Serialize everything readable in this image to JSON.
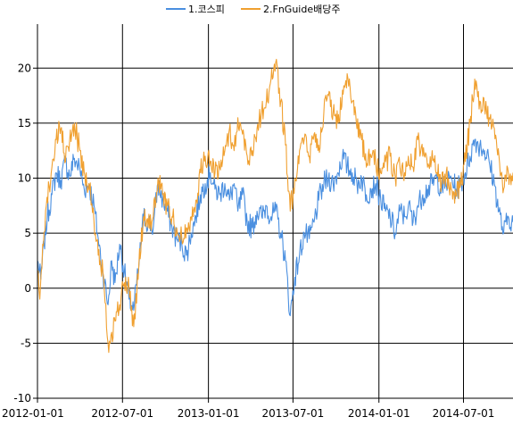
{
  "chart_data": {
    "type": "line",
    "grid": true,
    "legend_position": "top-center",
    "ylim": [
      -10,
      24
    ],
    "yticks": [
      -10,
      -5,
      0,
      5,
      10,
      15,
      20
    ],
    "xlim": [
      "2012-01-01",
      "2014-10-15"
    ],
    "xticks": [
      "2012-01-01",
      "2012-07-01",
      "2013-01-01",
      "2013-07-01",
      "2014-01-01",
      "2014-07-01"
    ],
    "series": [
      {
        "name": "1.코스피",
        "color": "#4a8fe0",
        "points": [
          [
            "2012-01-01",
            2.5
          ],
          [
            "2012-01-08",
            0.8
          ],
          [
            "2012-01-15",
            4.0
          ],
          [
            "2012-01-22",
            6.5
          ],
          [
            "2012-02-01",
            8.5
          ],
          [
            "2012-02-10",
            10.5
          ],
          [
            "2012-02-20",
            9.8
          ],
          [
            "2012-03-01",
            11.5
          ],
          [
            "2012-03-10",
            10.2
          ],
          [
            "2012-03-20",
            11.8
          ],
          [
            "2012-04-01",
            10.8
          ],
          [
            "2012-04-10",
            9.0
          ],
          [
            "2012-04-20",
            9.5
          ],
          [
            "2012-05-01",
            7.5
          ],
          [
            "2012-05-10",
            4.5
          ],
          [
            "2012-05-20",
            1.5
          ],
          [
            "2012-05-31",
            -1.5
          ],
          [
            "2012-06-08",
            2.5
          ],
          [
            "2012-06-15",
            0.5
          ],
          [
            "2012-06-25",
            4.0
          ],
          [
            "2012-07-05",
            1.5
          ],
          [
            "2012-07-15",
            -1.0
          ],
          [
            "2012-07-25",
            -2.0
          ],
          [
            "2012-08-05",
            2.0
          ],
          [
            "2012-08-15",
            6.5
          ],
          [
            "2012-08-25",
            6.0
          ],
          [
            "2012-09-05",
            5.5
          ],
          [
            "2012-09-15",
            9.5
          ],
          [
            "2012-09-25",
            8.0
          ],
          [
            "2012-10-05",
            7.0
          ],
          [
            "2012-10-15",
            5.5
          ],
          [
            "2012-10-25",
            4.5
          ],
          [
            "2012-11-05",
            4.0
          ],
          [
            "2012-11-15",
            3.0
          ],
          [
            "2012-11-25",
            5.0
          ],
          [
            "2012-12-05",
            6.5
          ],
          [
            "2012-12-15",
            8.5
          ],
          [
            "2012-12-25",
            9.5
          ],
          [
            "2013-01-05",
            10.5
          ],
          [
            "2013-01-15",
            9.0
          ],
          [
            "2013-01-25",
            8.5
          ],
          [
            "2013-02-05",
            9.5
          ],
          [
            "2013-02-15",
            8.0
          ],
          [
            "2013-02-25",
            9.5
          ],
          [
            "2013-03-05",
            7.0
          ],
          [
            "2013-03-15",
            8.5
          ],
          [
            "2013-03-25",
            6.0
          ],
          [
            "2013-04-05",
            5.5
          ],
          [
            "2013-04-15",
            7.0
          ],
          [
            "2013-04-25",
            6.5
          ],
          [
            "2013-05-05",
            7.5
          ],
          [
            "2013-05-15",
            6.5
          ],
          [
            "2013-05-25",
            7.0
          ],
          [
            "2013-06-05",
            5.0
          ],
          [
            "2013-06-15",
            2.5
          ],
          [
            "2013-06-25",
            -2.5
          ],
          [
            "2013-07-05",
            1.0
          ],
          [
            "2013-07-15",
            3.0
          ],
          [
            "2013-07-25",
            5.0
          ],
          [
            "2013-08-05",
            4.5
          ],
          [
            "2013-08-15",
            6.0
          ],
          [
            "2013-08-25",
            8.0
          ],
          [
            "2013-09-05",
            9.5
          ],
          [
            "2013-09-15",
            10.0
          ],
          [
            "2013-09-25",
            9.5
          ],
          [
            "2013-10-05",
            10.5
          ],
          [
            "2013-10-15",
            12.0
          ],
          [
            "2013-10-25",
            11.0
          ],
          [
            "2013-11-05",
            10.5
          ],
          [
            "2013-11-15",
            9.5
          ],
          [
            "2013-11-25",
            10.0
          ],
          [
            "2013-12-05",
            8.5
          ],
          [
            "2013-12-15",
            9.0
          ],
          [
            "2013-12-25",
            9.5
          ],
          [
            "2014-01-05",
            8.0
          ],
          [
            "2014-01-15",
            7.0
          ],
          [
            "2014-01-25",
            6.5
          ],
          [
            "2014-02-05",
            5.0
          ],
          [
            "2014-02-15",
            7.0
          ],
          [
            "2014-02-25",
            6.5
          ],
          [
            "2014-03-05",
            7.5
          ],
          [
            "2014-03-15",
            6.0
          ],
          [
            "2014-03-25",
            7.5
          ],
          [
            "2014-04-05",
            8.5
          ],
          [
            "2014-04-15",
            9.0
          ],
          [
            "2014-04-25",
            9.5
          ],
          [
            "2014-05-05",
            10.0
          ],
          [
            "2014-05-15",
            9.0
          ],
          [
            "2014-05-25",
            9.5
          ],
          [
            "2014-06-05",
            10.0
          ],
          [
            "2014-06-15",
            9.0
          ],
          [
            "2014-06-25",
            9.5
          ],
          [
            "2014-07-05",
            10.5
          ],
          [
            "2014-07-15",
            12.0
          ],
          [
            "2014-07-25",
            13.5
          ],
          [
            "2014-08-05",
            13.0
          ],
          [
            "2014-08-15",
            12.5
          ],
          [
            "2014-08-25",
            11.5
          ],
          [
            "2014-09-05",
            9.5
          ],
          [
            "2014-09-15",
            7.0
          ],
          [
            "2014-09-25",
            5.0
          ],
          [
            "2014-10-05",
            6.5
          ],
          [
            "2014-10-15",
            6.0
          ]
        ]
      },
      {
        "name": "2.FnGuide배당주",
        "color": "#f0a030",
        "points": [
          [
            "2012-01-01",
            1.5
          ],
          [
            "2012-01-06",
            -1.0
          ],
          [
            "2012-01-12",
            4.0
          ],
          [
            "2012-01-20",
            7.5
          ],
          [
            "2012-02-01",
            11.0
          ],
          [
            "2012-02-10",
            13.5
          ],
          [
            "2012-02-20",
            14.5
          ],
          [
            "2012-03-01",
            11.5
          ],
          [
            "2012-03-10",
            13.5
          ],
          [
            "2012-03-20",
            15.0
          ],
          [
            "2012-04-01",
            12.5
          ],
          [
            "2012-04-10",
            10.5
          ],
          [
            "2012-04-20",
            9.5
          ],
          [
            "2012-05-01",
            6.0
          ],
          [
            "2012-05-10",
            3.0
          ],
          [
            "2012-05-20",
            1.5
          ],
          [
            "2012-05-31",
            -5.0
          ],
          [
            "2012-06-08",
            -4.0
          ],
          [
            "2012-06-15",
            -3.0
          ],
          [
            "2012-06-25",
            -1.5
          ],
          [
            "2012-07-05",
            0.5
          ],
          [
            "2012-07-15",
            0.0
          ],
          [
            "2012-07-25",
            -3.5
          ],
          [
            "2012-08-05",
            2.0
          ],
          [
            "2012-08-15",
            6.5
          ],
          [
            "2012-08-25",
            5.5
          ],
          [
            "2012-09-05",
            6.5
          ],
          [
            "2012-09-15",
            10.0
          ],
          [
            "2012-09-25",
            8.5
          ],
          [
            "2012-10-05",
            7.5
          ],
          [
            "2012-10-15",
            6.5
          ],
          [
            "2012-10-25",
            5.5
          ],
          [
            "2012-11-05",
            4.5
          ],
          [
            "2012-11-15",
            5.5
          ],
          [
            "2012-11-25",
            6.5
          ],
          [
            "2012-12-05",
            8.0
          ],
          [
            "2012-12-15",
            10.5
          ],
          [
            "2012-12-25",
            12.0
          ],
          [
            "2013-01-05",
            11.5
          ],
          [
            "2013-01-15",
            10.5
          ],
          [
            "2013-01-25",
            11.0
          ],
          [
            "2013-02-05",
            12.5
          ],
          [
            "2013-02-15",
            14.5
          ],
          [
            "2013-02-25",
            12.5
          ],
          [
            "2013-03-05",
            15.5
          ],
          [
            "2013-03-15",
            14.0
          ],
          [
            "2013-03-25",
            12.0
          ],
          [
            "2013-04-05",
            12.5
          ],
          [
            "2013-04-15",
            14.5
          ],
          [
            "2013-04-25",
            16.0
          ],
          [
            "2013-05-05",
            17.0
          ],
          [
            "2013-05-15",
            19.0
          ],
          [
            "2013-05-25",
            20.5
          ],
          [
            "2013-06-05",
            17.0
          ],
          [
            "2013-06-15",
            13.0
          ],
          [
            "2013-06-25",
            7.0
          ],
          [
            "2013-07-05",
            10.0
          ],
          [
            "2013-07-15",
            12.5
          ],
          [
            "2013-07-25",
            13.5
          ],
          [
            "2013-08-05",
            12.0
          ],
          [
            "2013-08-15",
            14.0
          ],
          [
            "2013-08-25",
            13.0
          ],
          [
            "2013-09-05",
            16.0
          ],
          [
            "2013-09-15",
            17.5
          ],
          [
            "2013-09-25",
            16.0
          ],
          [
            "2013-10-05",
            15.0
          ],
          [
            "2013-10-15",
            18.0
          ],
          [
            "2013-10-25",
            19.5
          ],
          [
            "2013-11-05",
            17.0
          ],
          [
            "2013-11-15",
            14.5
          ],
          [
            "2013-11-25",
            13.5
          ],
          [
            "2013-12-05",
            11.0
          ],
          [
            "2013-12-15",
            12.0
          ],
          [
            "2013-12-25",
            11.5
          ],
          [
            "2014-01-05",
            10.5
          ],
          [
            "2014-01-15",
            11.5
          ],
          [
            "2014-01-25",
            12.0
          ],
          [
            "2014-02-05",
            10.0
          ],
          [
            "2014-02-15",
            11.0
          ],
          [
            "2014-02-25",
            10.5
          ],
          [
            "2014-03-05",
            12.0
          ],
          [
            "2014-03-15",
            11.0
          ],
          [
            "2014-03-25",
            13.5
          ],
          [
            "2014-04-05",
            12.0
          ],
          [
            "2014-04-15",
            11.0
          ],
          [
            "2014-04-25",
            12.5
          ],
          [
            "2014-05-05",
            10.5
          ],
          [
            "2014-05-15",
            9.5
          ],
          [
            "2014-05-25",
            10.5
          ],
          [
            "2014-06-05",
            9.0
          ],
          [
            "2014-06-15",
            8.5
          ],
          [
            "2014-06-25",
            9.5
          ],
          [
            "2014-07-05",
            11.5
          ],
          [
            "2014-07-15",
            15.0
          ],
          [
            "2014-07-25",
            19.0
          ],
          [
            "2014-08-05",
            17.0
          ],
          [
            "2014-08-15",
            16.5
          ],
          [
            "2014-08-25",
            15.5
          ],
          [
            "2014-09-05",
            14.5
          ],
          [
            "2014-09-15",
            12.0
          ],
          [
            "2014-09-25",
            9.0
          ],
          [
            "2014-10-05",
            10.5
          ],
          [
            "2014-10-15",
            10.5
          ]
        ]
      }
    ]
  }
}
